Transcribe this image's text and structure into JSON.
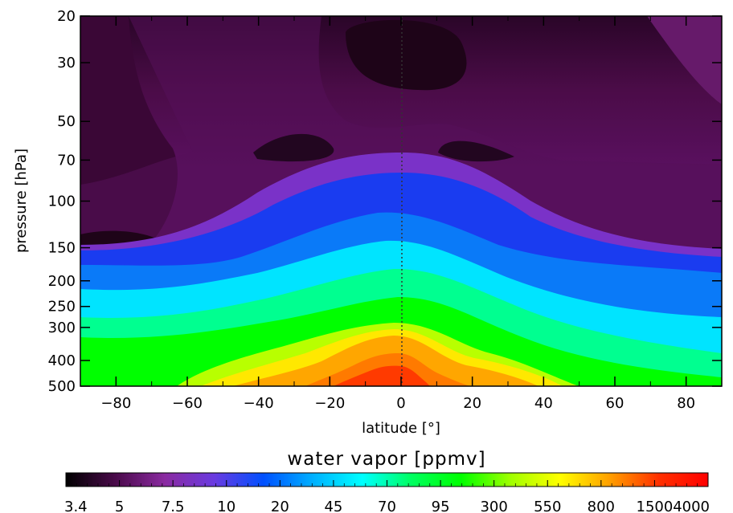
{
  "chart_data": {
    "type": "heatmap",
    "title": "",
    "xlabel": "latitude [°]",
    "ylabel": "pressure [hPa]",
    "xlim": [
      -90,
      90
    ],
    "ylim": [
      500,
      20
    ],
    "y_scale": "log",
    "x_ticks": [
      -80,
      -60,
      -40,
      -20,
      0,
      20,
      40,
      60,
      80
    ],
    "x_tick_labels": [
      "−80",
      "−60",
      "−40",
      "−20",
      "0",
      "20",
      "40",
      "60",
      "80"
    ],
    "y_ticks": [
      20,
      30,
      50,
      70,
      100,
      150,
      200,
      250,
      300,
      400,
      500
    ],
    "y_tick_labels": [
      "20",
      "30",
      "50",
      "70",
      "100",
      "150",
      "200",
      "250",
      "300",
      "400",
      "500"
    ],
    "reference_line": {
      "x": 0,
      "style": "dotted"
    },
    "colorbar": {
      "title": "water vapor [ppmv]",
      "orientation": "horizontal",
      "position": "bottom",
      "labels": [
        "3.4",
        "5",
        "7.5",
        "10",
        "20",
        "45",
        "70",
        "95",
        "300",
        "550",
        "800",
        "1500",
        "4000"
      ],
      "colors": [
        "#000000",
        "#4a0a4a",
        "#8a2aa0",
        "#6a3ae0",
        "#0050ff",
        "#00b0ff",
        "#00ffff",
        "#00ff60",
        "#00ff00",
        "#a0ff00",
        "#ffff00",
        "#ffa000",
        "#ff3000",
        "#ff0000"
      ]
    },
    "notes_colors": {
      "stratosphere": "#4a0a4a",
      "dry_core": "#1a0012",
      "tropopause_band": "#0050ff",
      "mid_troposphere": "#00ff00",
      "lower_troposphere": "#ff8800"
    }
  }
}
